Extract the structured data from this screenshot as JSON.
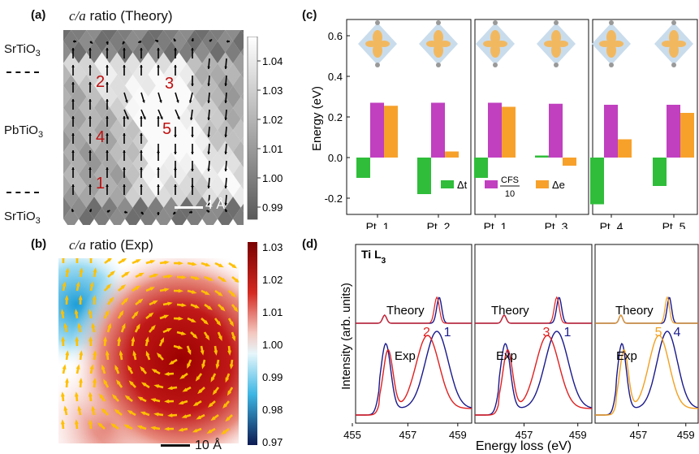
{
  "panel_a": {
    "label": "(a)",
    "title_var": "c/a",
    "title_rest": " ratio (Theory)",
    "layers": [
      "SrTiO3",
      "PbTiO3",
      "SrTiO3"
    ],
    "points": [
      "1",
      "2",
      "3",
      "4",
      "5"
    ],
    "scalebar": "4 Å",
    "colorbar_ticks": [
      "1.04",
      "1.03",
      "1.02",
      "1.01",
      "1.00",
      "0.99"
    ]
  },
  "panel_b": {
    "label": "(b)",
    "title_var": "c/a",
    "title_rest": " ratio (Exp)",
    "scalebar": "10 Å",
    "colorbar_ticks": [
      "1.03",
      "1.02",
      "1.01",
      "1.00",
      "0.99",
      "0.98",
      "0.97"
    ]
  },
  "panel_c": {
    "label": "(c)",
    "ylabel": "Energy (eV)",
    "yticks": [
      "0.6",
      "0.4",
      "0.2",
      "0.0",
      "-0.2"
    ],
    "legend": {
      "dt": "Δt",
      "cfs_num": "CFS",
      "cfs_den": "10",
      "de": "Δe"
    }
  },
  "panel_d": {
    "label": "(d)",
    "edge": "Ti L",
    "edge_sub": "3",
    "ylabel": "Intensity (arb. units)",
    "xlabel": "Energy loss (eV)",
    "theory": "Theory",
    "exp": "Exp",
    "subpanels": [
      {
        "red": "2",
        "blue": "1",
        "xticks": [
          "455",
          "457",
          "459"
        ]
      },
      {
        "red": "3",
        "blue": "1",
        "xticks": [
          "457",
          "459"
        ]
      },
      {
        "red": "5",
        "blue": "4",
        "xticks": [
          "457",
          "459"
        ]
      }
    ]
  },
  "chart_data": [
    {
      "type": "bar",
      "categories": [
        "Pt. 1",
        "Pt. 2",
        "Pt. 1",
        "Pt. 3",
        "Pt. 4",
        "Pt. 5"
      ],
      "series": [
        {
          "name": "Δt",
          "color": "#2fbd3a",
          "values": [
            -0.1,
            -0.18,
            -0.1,
            0.01,
            -0.23,
            -0.14
          ]
        },
        {
          "name": "CFS/10",
          "color": "#c040c0",
          "values": [
            0.27,
            0.27,
            0.27,
            0.265,
            0.26,
            0.26
          ]
        },
        {
          "name": "Δe",
          "color": "#f7a12b",
          "values": [
            0.255,
            0.03,
            0.25,
            -0.04,
            0.09,
            0.22
          ]
        }
      ],
      "groups": [
        [
          0,
          1
        ],
        [
          2,
          3
        ],
        [
          4,
          5
        ]
      ],
      "ylabel": "Energy (eV)",
      "ylim": [
        -0.28,
        0.68
      ]
    }
  ]
}
